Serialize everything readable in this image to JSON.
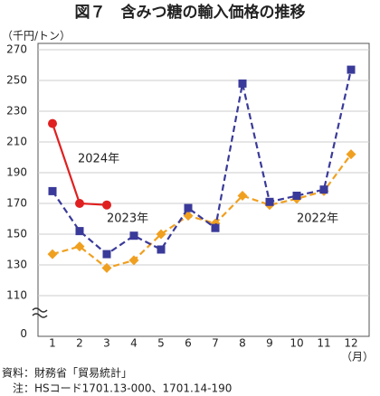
{
  "chart_data": {
    "type": "line",
    "title": "図７　含みつ糖の輸入価格の推移",
    "y_label": "（千円/トン）",
    "x_label": "（月）",
    "categories": [
      "1",
      "2",
      "3",
      "4",
      "5",
      "6",
      "7",
      "8",
      "9",
      "10",
      "11",
      "12"
    ],
    "series": [
      {
        "name": "2022年",
        "color": "#f0a020",
        "dash": true,
        "marker": "diamond",
        "values": [
          137,
          142,
          128,
          133,
          150,
          162,
          157,
          175,
          169,
          173,
          178,
          202
        ]
      },
      {
        "name": "2023年",
        "color": "#3a3a9a",
        "dash": true,
        "marker": "square",
        "values": [
          178,
          152,
          137,
          149,
          140,
          167,
          154,
          248,
          171,
          175,
          179,
          257
        ]
      },
      {
        "name": "2024年",
        "color": "#e02020",
        "dash": false,
        "marker": "circle",
        "values": [
          222,
          170,
          169,
          null,
          null,
          null,
          null,
          null,
          null,
          null,
          null,
          null
        ]
      }
    ],
    "ylim": [
      85,
      270
    ],
    "yticks": [
      0,
      110,
      130,
      150,
      170,
      190,
      210,
      230,
      250,
      270
    ],
    "axis_break": true,
    "grid": true,
    "source": "資料：財務省「貿易統計」",
    "note": "注：HSコード1701.13-000、1701.14-190"
  }
}
